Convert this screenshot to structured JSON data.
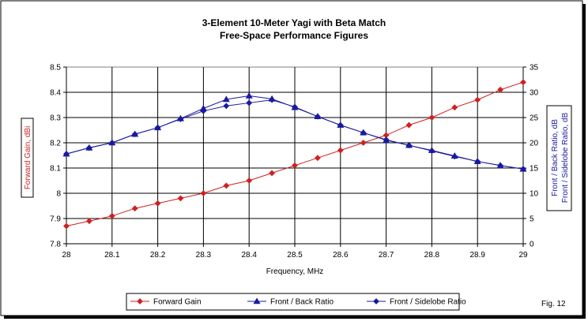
{
  "chart_data": {
    "type": "line",
    "title": "3-Element 10-Meter Yagi with Beta Match",
    "subtitle": "Free-Space Performance Figures",
    "xlabel": "Frequency, MHz",
    "ylabel": "Forward Gain, dBi",
    "ylabel_right_lines": [
      "Front / Back Ratio,  dB",
      "Front / Sidelobe Ratio,  dB"
    ],
    "figure_label": "Fig. 12",
    "xlim": [
      28,
      29
    ],
    "ylim": [
      7.8,
      8.5
    ],
    "ylim_right": [
      0,
      35
    ],
    "x_ticks": [
      "28",
      "28.1",
      "28.2",
      "28.3",
      "28.4",
      "28.5",
      "28.6",
      "28.7",
      "28.8",
      "28.9",
      "29"
    ],
    "y_ticks": [
      "7.8",
      "7.9",
      "8",
      "8.1",
      "8.2",
      "8.3",
      "8.4",
      "8.5"
    ],
    "y_ticks_right": [
      "0",
      "5",
      "10",
      "15",
      "20",
      "25",
      "30",
      "35"
    ],
    "grid": true,
    "legend_position": "bottom",
    "x": [
      28,
      28.05,
      28.1,
      28.15,
      28.2,
      28.25,
      28.3,
      28.35,
      28.4,
      28.45,
      28.5,
      28.55,
      28.6,
      28.65,
      28.7,
      28.75,
      28.8,
      28.85,
      28.9,
      28.95,
      29
    ],
    "series": [
      {
        "name": "Forward Gain",
        "axis": "left",
        "color": "#d02020",
        "marker": "diamond",
        "values": [
          7.87,
          7.89,
          7.91,
          7.94,
          7.96,
          7.98,
          8.0,
          8.03,
          8.05,
          8.08,
          8.11,
          8.14,
          8.17,
          8.2,
          8.23,
          8.27,
          8.3,
          8.34,
          8.37,
          8.41,
          8.44
        ]
      },
      {
        "name": "Front / Back Ratio",
        "axis": "right",
        "color": "#1a1aa0",
        "marker": "triangle",
        "values": [
          17.8,
          19.0,
          20.0,
          21.7,
          23.0,
          24.8,
          26.8,
          28.6,
          29.3,
          28.7,
          27.0,
          25.2,
          23.5,
          22.0,
          20.5,
          19.5,
          18.5,
          17.4,
          16.3,
          15.5,
          14.8
        ]
      },
      {
        "name": "Front / Sidelobe Ratio",
        "axis": "right",
        "color": "#1a1aa0",
        "marker": "diamond",
        "values": [
          17.8,
          19.0,
          20.0,
          21.7,
          23.0,
          24.7,
          26.3,
          27.3,
          27.9,
          28.5,
          27.1,
          25.2,
          23.5,
          22.0,
          20.6,
          19.5,
          18.4,
          17.3,
          16.3,
          15.5,
          14.8
        ]
      }
    ]
  }
}
